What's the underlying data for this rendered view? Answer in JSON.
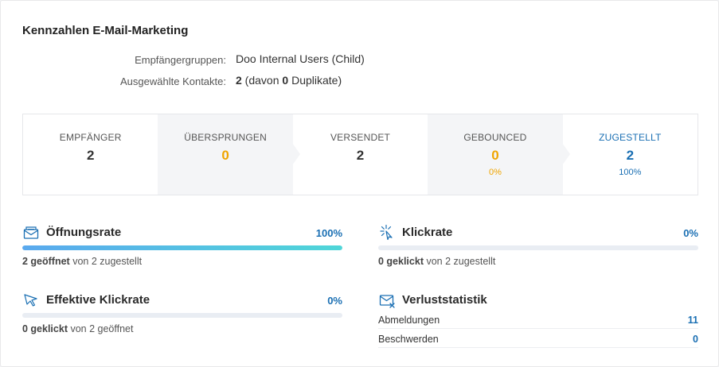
{
  "title": "Kennzahlen E-Mail-Marketing",
  "meta": {
    "groups_label": "Empfängergruppen:",
    "groups_value": "Doo Internal Users (Child)",
    "contacts_label": "Ausgewählte Kontakte:",
    "contacts_count": "2",
    "contacts_mid": " (davon ",
    "contacts_dup": "0",
    "contacts_end": " Duplikate)"
  },
  "stats": [
    {
      "label": "EMPFÄNGER",
      "value": "2",
      "pct": "",
      "color": "#333333",
      "label_color": "#555555"
    },
    {
      "label": "ÜBERSPRUNGEN",
      "value": "0",
      "pct": "",
      "color": "#f0a500",
      "label_color": "#555555"
    },
    {
      "label": "VERSENDET",
      "value": "2",
      "pct": "",
      "color": "#333333",
      "label_color": "#555555"
    },
    {
      "label": "GEBOUNCED",
      "value": "0",
      "pct": "0%",
      "color": "#f0a500",
      "label_color": "#555555"
    },
    {
      "label": "ZUGESTELLT",
      "value": "2",
      "pct": "100%",
      "color": "#1a6fb3",
      "label_color": "#1a6fb3"
    }
  ],
  "open_rate": {
    "title": "Öffnungsrate",
    "pct": "100%",
    "fraction": 1.0,
    "sub_bold": "2 geöffnet",
    "sub_rest": " von 2 zugestellt",
    "icon": "envelope-open-icon"
  },
  "click_rate": {
    "title": "Klickrate",
    "pct": "0%",
    "fraction": 0,
    "sub_bold": "0 geklickt",
    "sub_rest": " von 2 zugestellt",
    "icon": "cursor-click-icon"
  },
  "effective_click_rate": {
    "title": "Effektive Klickrate",
    "pct": "0%",
    "fraction": 0,
    "sub_bold": "0 geklickt",
    "sub_rest": " von 2 geöffnet",
    "icon": "pointer-icon"
  },
  "loss_stats": {
    "title": "Verluststatistik",
    "icon": "envelope-x-icon",
    "rows": [
      {
        "label": "Abmeldungen",
        "value": "11"
      },
      {
        "label": "Beschwerden",
        "value": "0"
      }
    ]
  },
  "colors": {
    "accent": "#1a6fb3",
    "warning": "#f0a500",
    "bar_start": "#5aa9ee",
    "bar_end": "#4fd6d8"
  }
}
